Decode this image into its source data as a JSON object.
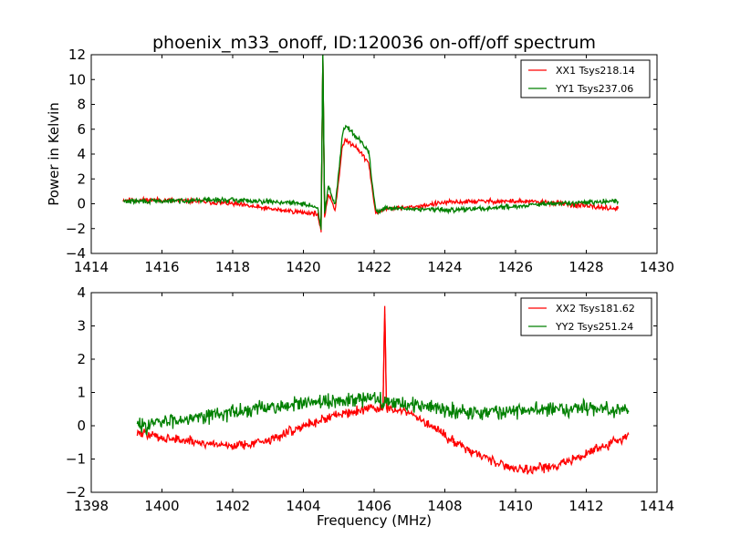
{
  "chart_data": [
    {
      "type": "line",
      "title": "phoenix_m33_onoff, ID:120036 on-off/off spectrum",
      "xlabel": "",
      "ylabel": "Power in Kelvin",
      "xlim": [
        1414,
        1430
      ],
      "ylim": [
        -4,
        12
      ],
      "xticks": [
        1414,
        1416,
        1418,
        1420,
        1422,
        1424,
        1426,
        1428,
        1430
      ],
      "yticks": [
        -4,
        -2,
        0,
        2,
        4,
        6,
        8,
        10,
        12
      ],
      "legend_position": "top-right",
      "series": [
        {
          "name": "XX1 Tsys218.14",
          "color": "#ff0000",
          "noise": 0.12,
          "seed": 11,
          "points": [
            [
              1414.9,
              0.3
            ],
            [
              1416,
              0.3
            ],
            [
              1417,
              0.2
            ],
            [
              1418,
              0.0
            ],
            [
              1419,
              -0.4
            ],
            [
              1420,
              -0.7
            ],
            [
              1420.4,
              -0.8
            ],
            [
              1420.5,
              -2.3
            ],
            [
              1420.55,
              11.8
            ],
            [
              1420.6,
              -1.1
            ],
            [
              1420.7,
              0.8
            ],
            [
              1420.8,
              0.2
            ],
            [
              1420.9,
              -0.5
            ],
            [
              1421.0,
              2.0
            ],
            [
              1421.1,
              4.6
            ],
            [
              1421.2,
              5.1
            ],
            [
              1421.5,
              4.6
            ],
            [
              1421.7,
              3.8
            ],
            [
              1421.85,
              3.3
            ],
            [
              1421.95,
              1.0
            ],
            [
              1422.05,
              -0.8
            ],
            [
              1422.3,
              -0.4
            ],
            [
              1423,
              -0.3
            ],
            [
              1424,
              0.1
            ],
            [
              1425,
              0.2
            ],
            [
              1426,
              0.2
            ],
            [
              1427,
              0.1
            ],
            [
              1428,
              -0.2
            ],
            [
              1428.9,
              -0.4
            ]
          ]
        },
        {
          "name": "YY1 Tsys237.06",
          "color": "#008000",
          "noise": 0.12,
          "seed": 29,
          "points": [
            [
              1414.9,
              0.2
            ],
            [
              1416,
              0.2
            ],
            [
              1417,
              0.3
            ],
            [
              1418,
              0.3
            ],
            [
              1419,
              0.2
            ],
            [
              1420,
              0.0
            ],
            [
              1420.4,
              -0.3
            ],
            [
              1420.5,
              -2.1
            ],
            [
              1420.55,
              12.0
            ],
            [
              1420.6,
              -0.8
            ],
            [
              1420.7,
              1.5
            ],
            [
              1420.8,
              0.7
            ],
            [
              1420.9,
              -0.1
            ],
            [
              1421.0,
              2.6
            ],
            [
              1421.1,
              5.6
            ],
            [
              1421.2,
              6.3
            ],
            [
              1421.5,
              5.4
            ],
            [
              1421.7,
              4.7
            ],
            [
              1421.85,
              4.2
            ],
            [
              1421.95,
              1.5
            ],
            [
              1422.05,
              -0.6
            ],
            [
              1422.3,
              -0.4
            ],
            [
              1423,
              -0.4
            ],
            [
              1424,
              -0.5
            ],
            [
              1425,
              -0.4
            ],
            [
              1426,
              -0.2
            ],
            [
              1427,
              0.0
            ],
            [
              1428,
              0.1
            ],
            [
              1428.9,
              0.2
            ]
          ]
        }
      ]
    },
    {
      "type": "line",
      "title": "",
      "xlabel": "Frequency (MHz)",
      "ylabel": "",
      "xlim": [
        1398,
        1414
      ],
      "ylim": [
        -2,
        4
      ],
      "xticks": [
        1398,
        1400,
        1402,
        1404,
        1406,
        1408,
        1410,
        1412,
        1414
      ],
      "yticks": [
        -2,
        -1,
        0,
        1,
        2,
        3,
        4
      ],
      "legend_position": "top-right",
      "series": [
        {
          "name": "XX2 Tsys181.62",
          "color": "#ff0000",
          "noise": 0.09,
          "seed": 47,
          "points": [
            [
              1399.3,
              -0.2
            ],
            [
              1400,
              -0.35
            ],
            [
              1401,
              -0.5
            ],
            [
              1402,
              -0.6
            ],
            [
              1403,
              -0.45
            ],
            [
              1404,
              0.0
            ],
            [
              1405,
              0.35
            ],
            [
              1406,
              0.55
            ],
            [
              1406.25,
              0.5
            ],
            [
              1406.3,
              3.6
            ],
            [
              1406.35,
              0.5
            ],
            [
              1407,
              0.4
            ],
            [
              1408,
              -0.3
            ],
            [
              1409,
              -0.9
            ],
            [
              1410,
              -1.3
            ],
            [
              1411,
              -1.25
            ],
            [
              1412,
              -0.85
            ],
            [
              1413.2,
              -0.3
            ]
          ]
        },
        {
          "name": "YY2 Tsys251.24",
          "color": "#008000",
          "noise": 0.14,
          "seed": 83,
          "points": [
            [
              1399.3,
              0.0
            ],
            [
              1400,
              0.1
            ],
            [
              1401,
              0.3
            ],
            [
              1402,
              0.4
            ],
            [
              1403,
              0.55
            ],
            [
              1404,
              0.65
            ],
            [
              1405,
              0.75
            ],
            [
              1406,
              0.8
            ],
            [
              1407,
              0.65
            ],
            [
              1408,
              0.5
            ],
            [
              1409,
              0.4
            ],
            [
              1410,
              0.45
            ],
            [
              1411,
              0.5
            ],
            [
              1412,
              0.55
            ],
            [
              1413.2,
              0.45
            ]
          ]
        }
      ]
    }
  ]
}
